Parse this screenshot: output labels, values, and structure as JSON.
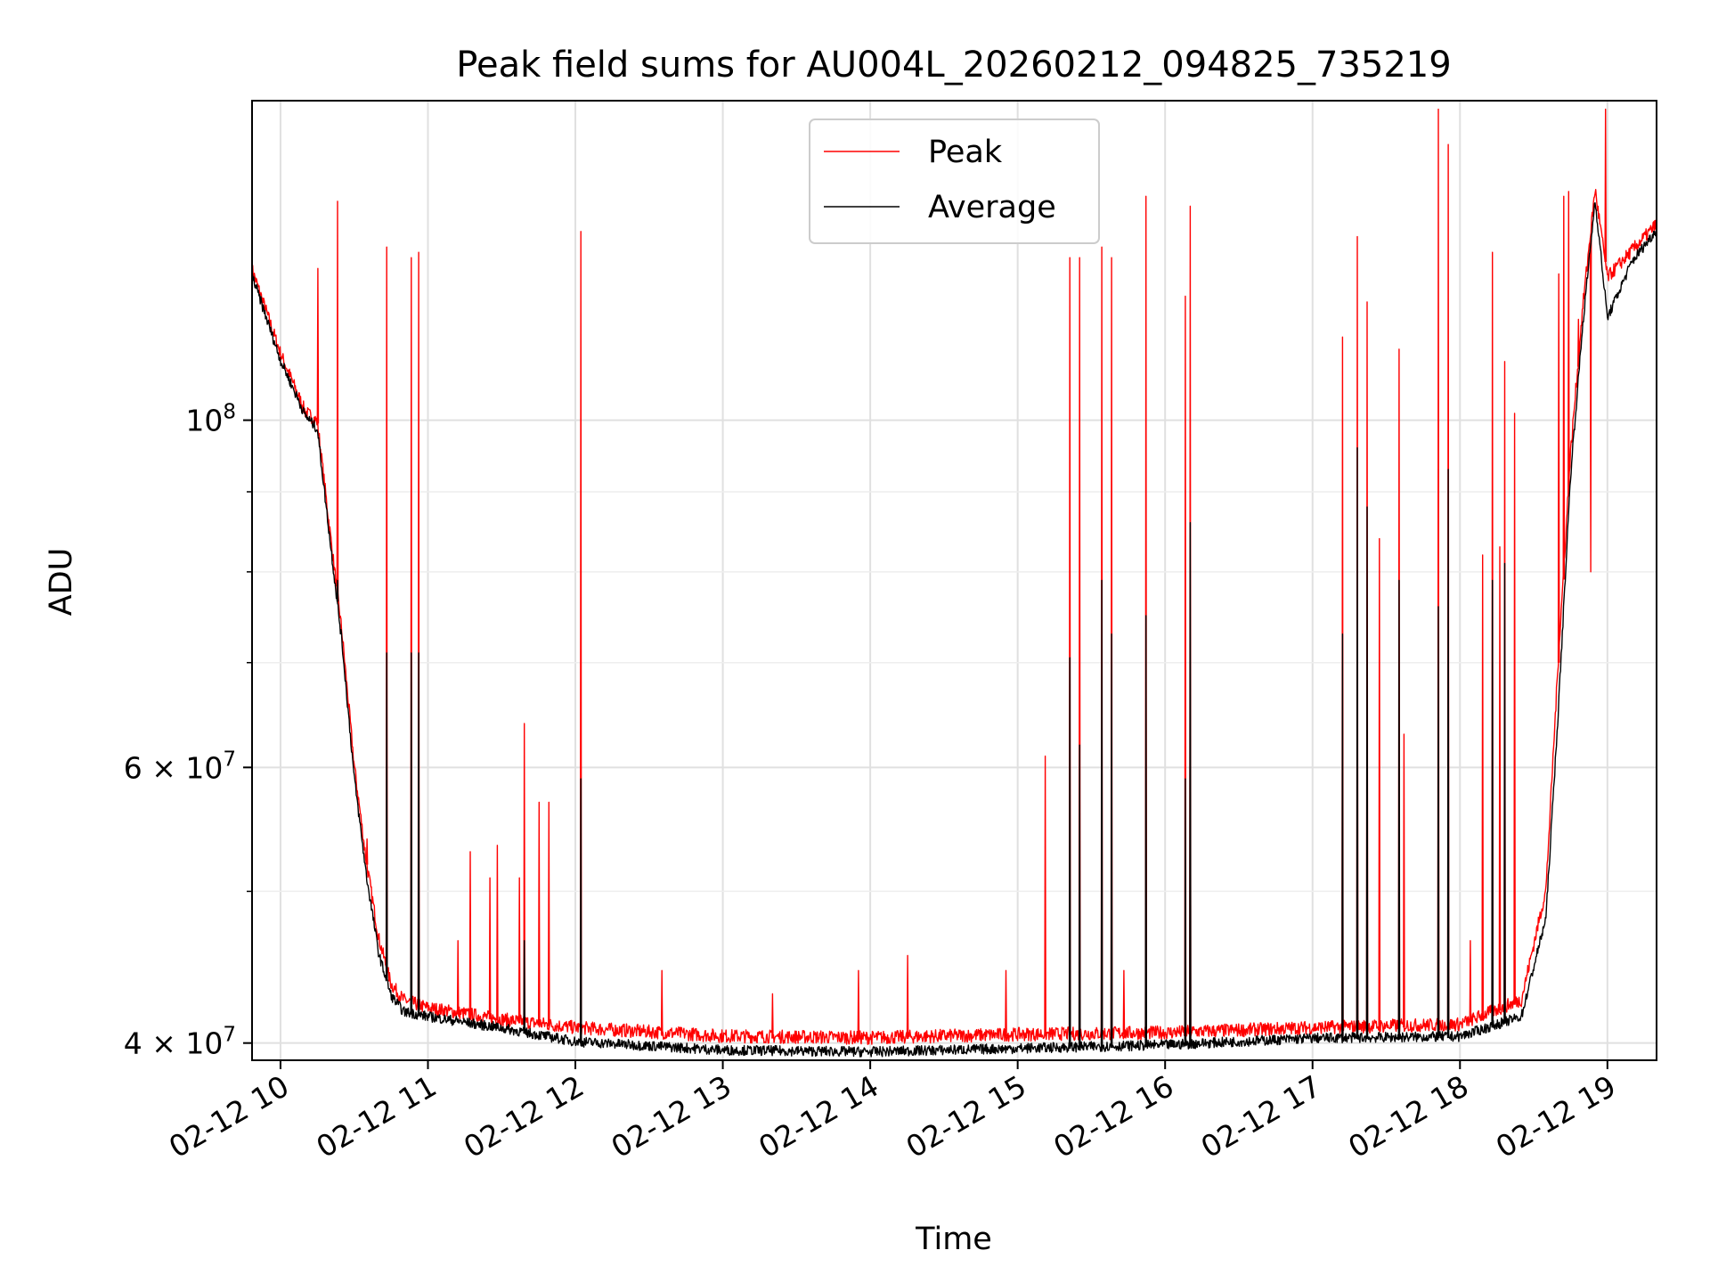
{
  "chart_data": {
    "type": "line",
    "title": "Peak field sums for AU004L_20260212_094825_735219",
    "xlabel": "Time",
    "ylabel": "ADU",
    "x_axis": "datetime",
    "xlim": [
      "2026-02-12 09:48:25",
      "2026-02-12 19:20:00"
    ],
    "x_ticks": [
      "02-12 10",
      "02-12 11",
      "02-12 12",
      "02-12 13",
      "02-12 14",
      "02-12 15",
      "02-12 16",
      "02-12 17",
      "02-12 18",
      "02-12 19"
    ],
    "y_scale": "log",
    "ylim": [
      39000000,
      160000000
    ],
    "y_major_ticks": [
      {
        "value": 40000000,
        "base": "4 × 10",
        "exp": "7"
      },
      {
        "value": 60000000,
        "base": "6 × 10",
        "exp": "7"
      },
      {
        "value": 100000000,
        "base": "10",
        "exp": "8"
      }
    ],
    "y_minor_ticks": [
      50000000,
      70000000,
      80000000,
      90000000
    ],
    "grid": true,
    "legend_position": "upper center",
    "series": [
      {
        "name": "Peak",
        "color": "#ff0000",
        "points": [
          [
            "2026-02-12 09:48",
            125000000
          ],
          [
            "2026-02-12 10:00",
            110000000
          ],
          [
            "2026-02-12 10:10",
            101000000
          ],
          [
            "2026-02-12 10:15",
            99500000
          ],
          [
            "2026-02-12 10:20",
            85000000
          ],
          [
            "2026-02-12 10:25",
            73000000
          ],
          [
            "2026-02-12 10:30",
            60000000
          ],
          [
            "2026-02-12 10:35",
            52000000
          ],
          [
            "2026-02-12 10:40",
            46500000
          ],
          [
            "2026-02-12 10:45",
            43500000
          ],
          [
            "2026-02-12 10:50",
            42500000
          ],
          [
            "2026-02-12 11:00",
            42000000
          ],
          [
            "2026-02-12 11:30",
            41300000
          ],
          [
            "2026-02-12 12:00",
            40800000
          ],
          [
            "2026-02-12 13:00",
            40300000
          ],
          [
            "2026-02-12 14:00",
            40200000
          ],
          [
            "2026-02-12 15:00",
            40400000
          ],
          [
            "2026-02-12 16:00",
            40500000
          ],
          [
            "2026-02-12 17:00",
            40800000
          ],
          [
            "2026-02-12 18:00",
            41000000
          ],
          [
            "2026-02-12 18:25",
            42500000
          ],
          [
            "2026-02-12 18:35",
            50000000
          ],
          [
            "2026-02-12 18:40",
            70000000
          ],
          [
            "2026-02-12 18:45",
            95000000
          ],
          [
            "2026-02-12 18:50",
            118000000
          ],
          [
            "2026-02-12 18:55",
            140000000
          ],
          [
            "2026-02-12 19:00",
            123000000
          ],
          [
            "2026-02-12 19:10",
            128000000
          ],
          [
            "2026-02-12 19:20",
            133000000
          ]
        ],
        "spikes": [
          [
            "2026-02-12 10:15",
            125000000
          ],
          [
            "2026-02-12 10:23",
            138000000
          ],
          [
            "2026-02-12 10:35",
            54000000
          ],
          [
            "2026-02-12 10:43",
            129000000
          ],
          [
            "2026-02-12 10:53",
            127000000
          ],
          [
            "2026-02-12 10:56",
            128000000
          ],
          [
            "2026-02-12 11:12",
            46500000
          ],
          [
            "2026-02-12 11:17",
            53000000
          ],
          [
            "2026-02-12 11:25",
            51000000
          ],
          [
            "2026-02-12 11:28",
            53500000
          ],
          [
            "2026-02-12 11:37",
            51000000
          ],
          [
            "2026-02-12 11:39",
            64000000
          ],
          [
            "2026-02-12 11:45",
            57000000
          ],
          [
            "2026-02-12 11:49",
            57000000
          ],
          [
            "2026-02-12 12:02",
            132000000
          ],
          [
            "2026-02-12 12:35",
            44500000
          ],
          [
            "2026-02-12 13:20",
            43000000
          ],
          [
            "2026-02-12 13:55",
            44500000
          ],
          [
            "2026-02-12 14:15",
            45500000
          ],
          [
            "2026-02-12 14:55",
            44500000
          ],
          [
            "2026-02-12 15:11",
            61000000
          ],
          [
            "2026-02-12 15:21",
            127000000
          ],
          [
            "2026-02-12 15:25",
            127000000
          ],
          [
            "2026-02-12 15:34",
            129000000
          ],
          [
            "2026-02-12 15:38",
            127000000
          ],
          [
            "2026-02-12 15:43",
            44500000
          ],
          [
            "2026-02-12 15:52",
            139000000
          ],
          [
            "2026-02-12 16:08",
            120000000
          ],
          [
            "2026-02-12 16:10",
            137000000
          ],
          [
            "2026-02-12 17:12",
            113000000
          ],
          [
            "2026-02-12 17:18",
            131000000
          ],
          [
            "2026-02-12 17:22",
            119000000
          ],
          [
            "2026-02-12 17:27",
            84000000
          ],
          [
            "2026-02-12 17:35",
            111000000
          ],
          [
            "2026-02-12 17:37",
            63000000
          ],
          [
            "2026-02-12 17:51",
            158000000
          ],
          [
            "2026-02-12 17:55",
            150000000
          ],
          [
            "2026-02-12 18:04",
            46500000
          ],
          [
            "2026-02-12 18:09",
            82000000
          ],
          [
            "2026-02-12 18:13",
            128000000
          ],
          [
            "2026-02-12 18:16",
            83000000
          ],
          [
            "2026-02-12 18:18",
            109000000
          ],
          [
            "2026-02-12 18:22",
            101000000
          ],
          [
            "2026-02-12 18:40",
            124000000
          ],
          [
            "2026-02-12 18:42",
            139000000
          ],
          [
            "2026-02-12 18:44",
            140000000
          ],
          [
            "2026-02-12 18:48",
            116000000
          ],
          [
            "2026-02-12 18:53",
            80000000
          ],
          [
            "2026-02-12 18:59",
            158000000
          ]
        ]
      },
      {
        "name": "Average",
        "color": "#000000",
        "points": [
          [
            "2026-02-12 09:48",
            124000000
          ],
          [
            "2026-02-12 10:00",
            109000000
          ],
          [
            "2026-02-12 10:10",
            100500000
          ],
          [
            "2026-02-12 10:15",
            98500000
          ],
          [
            "2026-02-12 10:20",
            84000000
          ],
          [
            "2026-02-12 10:25",
            72000000
          ],
          [
            "2026-02-12 10:30",
            59000000
          ],
          [
            "2026-02-12 10:35",
            51000000
          ],
          [
            "2026-02-12 10:40",
            45500000
          ],
          [
            "2026-02-12 10:45",
            42800000
          ],
          [
            "2026-02-12 10:50",
            41800000
          ],
          [
            "2026-02-12 11:00",
            41500000
          ],
          [
            "2026-02-12 11:30",
            40800000
          ],
          [
            "2026-02-12 12:00",
            40000000
          ],
          [
            "2026-02-12 13:00",
            39500000
          ],
          [
            "2026-02-12 14:00",
            39400000
          ],
          [
            "2026-02-12 15:00",
            39600000
          ],
          [
            "2026-02-12 16:00",
            39800000
          ],
          [
            "2026-02-12 17:00",
            40200000
          ],
          [
            "2026-02-12 18:00",
            40300000
          ],
          [
            "2026-02-12 18:25",
            41500000
          ],
          [
            "2026-02-12 18:35",
            48000000
          ],
          [
            "2026-02-12 18:40",
            65000000
          ],
          [
            "2026-02-12 18:45",
            92000000
          ],
          [
            "2026-02-12 18:50",
            115000000
          ],
          [
            "2026-02-12 18:55",
            138000000
          ],
          [
            "2026-02-12 19:00",
            116000000
          ],
          [
            "2026-02-12 19:10",
            126000000
          ],
          [
            "2026-02-12 19:20",
            132000000
          ]
        ],
        "spikes": [
          [
            "2026-02-12 10:23",
            79000000
          ],
          [
            "2026-02-12 10:43",
            71000000
          ],
          [
            "2026-02-12 10:53",
            71000000
          ],
          [
            "2026-02-12 10:56",
            71000000
          ],
          [
            "2026-02-12 11:39",
            46500000
          ],
          [
            "2026-02-12 12:02",
            59000000
          ],
          [
            "2026-02-12 15:21",
            70500000
          ],
          [
            "2026-02-12 15:25",
            62000000
          ],
          [
            "2026-02-12 15:34",
            79000000
          ],
          [
            "2026-02-12 15:38",
            73000000
          ],
          [
            "2026-02-12 15:52",
            75000000
          ],
          [
            "2026-02-12 16:08",
            59000000
          ],
          [
            "2026-02-12 16:10",
            86000000
          ],
          [
            "2026-02-12 17:12",
            73000000
          ],
          [
            "2026-02-12 17:18",
            96000000
          ],
          [
            "2026-02-12 17:22",
            88000000
          ],
          [
            "2026-02-12 17:35",
            79000000
          ],
          [
            "2026-02-12 17:51",
            76000000
          ],
          [
            "2026-02-12 17:55",
            93000000
          ],
          [
            "2026-02-12 18:13",
            79000000
          ],
          [
            "2026-02-12 18:18",
            81000000
          ]
        ]
      }
    ]
  }
}
